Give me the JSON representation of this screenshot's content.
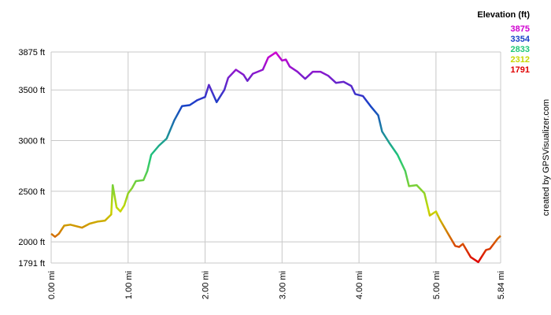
{
  "chart_data": {
    "type": "line",
    "legend_title": "Elevation (ft)",
    "legend": [
      {
        "value": 3875,
        "color": "#d000d0"
      },
      {
        "value": 3354,
        "color": "#1840c8"
      },
      {
        "value": 2833,
        "color": "#20c878"
      },
      {
        "value": 2312,
        "color": "#c8d800"
      },
      {
        "value": 1791,
        "color": "#e00000"
      }
    ],
    "credit": "created by GPSVisualizer.com",
    "xlim": [
      0,
      5.84
    ],
    "ylim": [
      1791,
      3875
    ],
    "xticks": [
      {
        "value": 0,
        "label": "0.00 mi"
      },
      {
        "value": 1,
        "label": "1.00 mi"
      },
      {
        "value": 2,
        "label": "2.00 mi"
      },
      {
        "value": 3,
        "label": "3.00 mi"
      },
      {
        "value": 4,
        "label": "4.00 mi"
      },
      {
        "value": 5,
        "label": "5.00 mi"
      },
      {
        "value": 5.84,
        "label": "5.84 mi"
      }
    ],
    "yticks": [
      {
        "value": 1791,
        "label": "1791 ft"
      },
      {
        "value": 2000,
        "label": "2000 ft"
      },
      {
        "value": 2500,
        "label": "2500 ft"
      },
      {
        "value": 3000,
        "label": "3000 ft"
      },
      {
        "value": 3500,
        "label": "3500 ft"
      },
      {
        "value": 3875,
        "label": "3875 ft"
      }
    ],
    "grid": true,
    "x": [
      0,
      0.05,
      0.1,
      0.17,
      0.25,
      0.4,
      0.5,
      0.6,
      0.7,
      0.78,
      0.8,
      0.85,
      0.9,
      0.95,
      1.0,
      1.05,
      1.1,
      1.2,
      1.25,
      1.3,
      1.4,
      1.5,
      1.6,
      1.7,
      1.8,
      1.9,
      2.0,
      2.05,
      2.15,
      2.25,
      2.3,
      2.4,
      2.5,
      2.55,
      2.62,
      2.75,
      2.82,
      2.92,
      3.0,
      3.05,
      3.1,
      3.2,
      3.3,
      3.4,
      3.5,
      3.6,
      3.7,
      3.8,
      3.9,
      3.95,
      4.05,
      4.15,
      4.25,
      4.3,
      4.4,
      4.5,
      4.6,
      4.65,
      4.75,
      4.85,
      4.92,
      5.0,
      5.05,
      5.15,
      5.25,
      5.3,
      5.35,
      5.45,
      5.55,
      5.65,
      5.7,
      5.8,
      5.84
    ],
    "values": [
      2080,
      2050,
      2080,
      2160,
      2170,
      2140,
      2180,
      2200,
      2210,
      2270,
      2560,
      2340,
      2300,
      2360,
      2480,
      2530,
      2600,
      2610,
      2700,
      2860,
      2950,
      3020,
      3200,
      3340,
      3350,
      3400,
      3430,
      3550,
      3380,
      3500,
      3620,
      3700,
      3650,
      3590,
      3660,
      3700,
      3820,
      3870,
      3790,
      3800,
      3730,
      3680,
      3610,
      3680,
      3680,
      3640,
      3570,
      3580,
      3540,
      3460,
      3440,
      3340,
      3250,
      3090,
      2970,
      2860,
      2700,
      2550,
      2560,
      2480,
      2260,
      2300,
      2220,
      2090,
      1960,
      1950,
      1980,
      1850,
      1800,
      1920,
      1930,
      2030,
      2060
    ]
  }
}
